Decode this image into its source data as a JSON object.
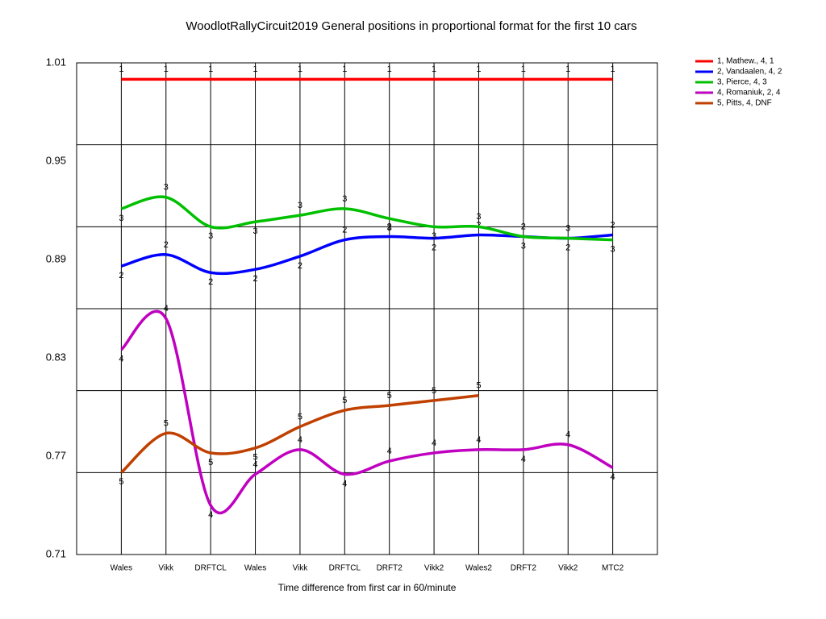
{
  "chart_data": {
    "type": "line",
    "title": "WoodlotRallyCircuit2019  General positions in proportional format for the first 10 cars",
    "x_label": "Time difference from first car in 60/minute",
    "categories": [
      "Wales",
      "Vikk",
      "DRFTCL",
      "Wales",
      "Vikk",
      "DRFTCL",
      "DRFT2",
      "Vikk2",
      "Wales2",
      "DRFT2",
      "Vikk2",
      "MTC2"
    ],
    "ylim": [
      0.71,
      1.01
    ],
    "yticks": [
      0.71,
      0.77,
      0.83,
      0.89,
      0.95,
      1.01
    ],
    "grid_lines": [
      0.71,
      0.76,
      0.81,
      0.86,
      0.91,
      0.96,
      1.01
    ],
    "series": [
      {
        "name": "1, Mathew., 4, 1",
        "color": "#ff0000",
        "point_label": "1",
        "values": [
          1.0,
          1.0,
          1.0,
          1.0,
          1.0,
          1.0,
          1.0,
          1.0,
          1.0,
          1.0,
          1.0,
          1.0
        ]
      },
      {
        "name": "2, Vandaalen, 4, 2",
        "color": "#0000ff",
        "point_label": "2",
        "values": [
          0.886,
          0.893,
          0.882,
          0.884,
          0.892,
          0.902,
          0.904,
          0.903,
          0.905,
          0.904,
          0.903,
          0.905
        ]
      },
      {
        "name": "3, Pierce, 4, 3",
        "color": "#00c000",
        "point_label": "3",
        "values": [
          0.921,
          0.928,
          0.91,
          0.913,
          0.917,
          0.921,
          0.915,
          0.91,
          0.91,
          0.904,
          0.903,
          0.902
        ]
      },
      {
        "name": "4, Romaniuk, 2, 4",
        "color": "#c000c0",
        "point_label": "4",
        "values": [
          0.835,
          0.854,
          0.74,
          0.759,
          0.774,
          0.759,
          0.767,
          0.772,
          0.774,
          0.774,
          0.777,
          0.763
        ]
      },
      {
        "name": "5, Pitts, 4, DNF",
        "color": "#c04000",
        "point_label": "5",
        "values": [
          0.76,
          0.784,
          0.772,
          0.775,
          0.788,
          0.798,
          0.801,
          0.804,
          0.807,
          null,
          null,
          null
        ]
      }
    ]
  }
}
